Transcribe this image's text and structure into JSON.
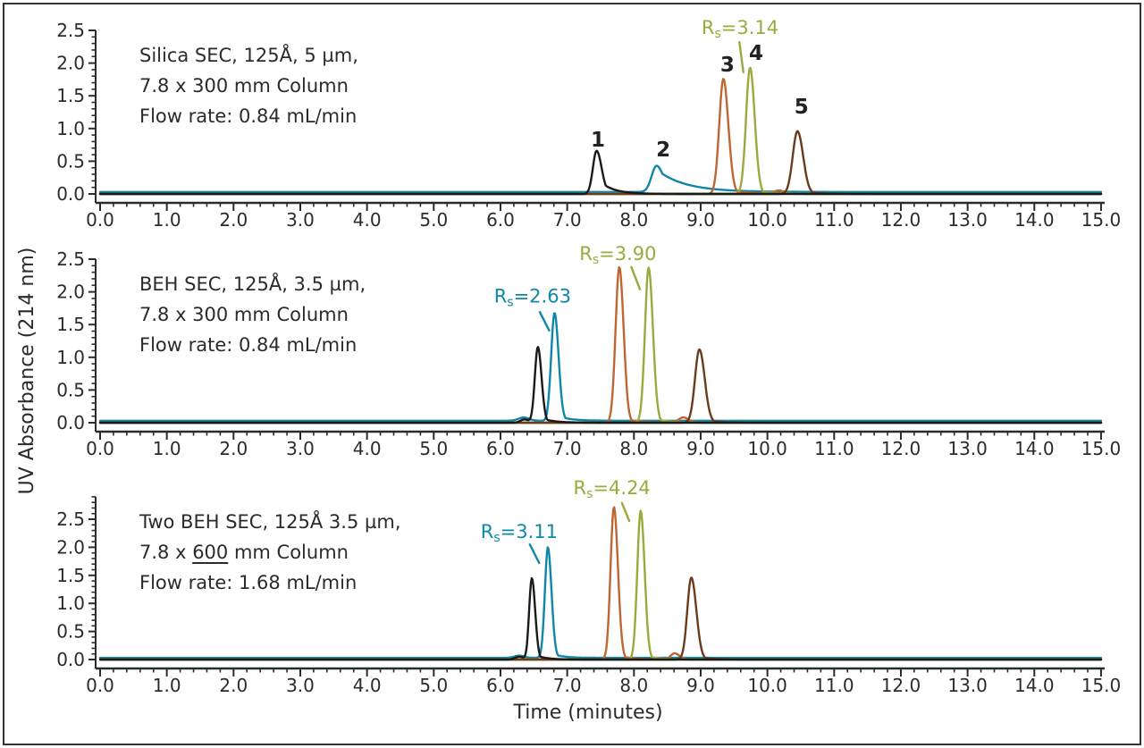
{
  "figure": {
    "xlabel": "Time (minutes)",
    "ylabel": "UV Absorbance (214 nm)",
    "background": "#ffffff",
    "border_color": "#333333",
    "text_color": "#2b2b2b",
    "axis_color": "#2b2b2b"
  },
  "axis": {
    "x_tick_labels": [
      "0.0",
      "1.0",
      "2.0",
      "3.0",
      "4.0",
      "5.0",
      "6.0",
      "7.0",
      "8.0",
      "9.0",
      "10.0",
      "11.0",
      "12.0",
      "13.0",
      "14.0",
      "15.0"
    ],
    "y_tick_labels": [
      "0.0",
      "0.5",
      "1.0",
      "1.5",
      "2.0",
      "2.5"
    ],
    "x_minor_step": 0.2,
    "y_minor_step": 0.1,
    "xlim": [
      0,
      15
    ]
  },
  "chart_data": [
    {
      "type": "line",
      "title_segments": [
        [
          {
            "t": "Silica SEC, 125Å, 5 µm,"
          }
        ],
        [
          {
            "t": "7.8 x 300 mm Column"
          }
        ],
        [
          {
            "t": "Flow rate: 0.84 mL/min"
          }
        ]
      ],
      "ylim": [
        0,
        2.5
      ],
      "series": [
        {
          "name": "teal",
          "color": "#0F87A8",
          "base": 0.03,
          "peaks": [
            {
              "c": 8.34,
              "h": 0.4,
              "wl": 0.075,
              "wr": 0.1,
              "ta": 0.85,
              "tl": 0.42
            }
          ]
        },
        {
          "name": "orange",
          "color": "#BF6632",
          "base": 0,
          "peaks": [
            {
              "c": 9.34,
              "h": 1.76,
              "wl": 0.062,
              "wr": 0.075,
              "ta": 0.05,
              "tl": 0.25
            },
            {
              "c": 10.17,
              "h": 0.05,
              "wl": 0.07,
              "wr": 0.08
            }
          ]
        },
        {
          "name": "olive",
          "color": "#9CA93C",
          "base": 0,
          "peaks": [
            {
              "c": 9.74,
              "h": 1.93,
              "wl": 0.06,
              "wr": 0.07,
              "ta": 0.04,
              "tl": 0.22
            }
          ]
        },
        {
          "name": "brown",
          "color": "#6A3B1D",
          "base": 0,
          "peaks": [
            {
              "c": 10.45,
              "h": 0.96,
              "wl": 0.07,
              "wr": 0.085,
              "ta": 0.05,
              "tl": 0.25
            }
          ]
        },
        {
          "name": "black",
          "color": "#1A1A1A",
          "base": 0,
          "peaks": [
            {
              "c": 7.44,
              "h": 0.66,
              "wl": 0.055,
              "wr": 0.075,
              "ta": 0.38,
              "tl": 0.2
            }
          ]
        }
      ],
      "peak_numbers": [
        {
          "label": "1",
          "t": 7.46,
          "v": 0.83
        },
        {
          "label": "2",
          "t": 8.44,
          "v": 0.68
        },
        {
          "label": "3",
          "t": 9.4,
          "v": 1.98
        },
        {
          "label": "4",
          "t": 9.83,
          "v": 2.16
        },
        {
          "label": "5",
          "t": 10.51,
          "v": 1.34
        }
      ],
      "rs_annotations": [
        {
          "pre": "R",
          "sub": "s",
          "rest": "=3.14",
          "color": "#9CA93C",
          "t": 9.59,
          "v": 2.54,
          "line": [
            9.58,
            2.32,
            9.64,
            1.86
          ]
        }
      ]
    },
    {
      "type": "line",
      "title_segments": [
        [
          {
            "t": "BEH SEC, 125Å, 3.5 µm,"
          }
        ],
        [
          {
            "t": "7.8 x 300 mm Column"
          }
        ],
        [
          {
            "t": "Flow rate: 0.84 mL/min"
          }
        ]
      ],
      "ylim": [
        0,
        2.5
      ],
      "series": [
        {
          "name": "teal",
          "color": "#0F87A8",
          "base": 0.03,
          "peaks": [
            {
              "c": 6.81,
              "h": 1.65,
              "wl": 0.05,
              "wr": 0.06,
              "ta": 0.06,
              "tl": 0.18
            },
            {
              "c": 6.35,
              "h": 0.05,
              "wl": 0.08,
              "wr": 0.08
            }
          ]
        },
        {
          "name": "orange",
          "color": "#BF6632",
          "base": 0,
          "peaks": [
            {
              "c": 7.78,
              "h": 2.38,
              "wl": 0.055,
              "wr": 0.065,
              "ta": 0.04,
              "tl": 0.2
            },
            {
              "c": 8.74,
              "h": 0.08,
              "wl": 0.07,
              "wr": 0.08
            }
          ]
        },
        {
          "name": "olive",
          "color": "#9CA93C",
          "base": 0,
          "peaks": [
            {
              "c": 8.22,
              "h": 2.37,
              "wl": 0.055,
              "wr": 0.065,
              "ta": 0.04,
              "tl": 0.2
            }
          ]
        },
        {
          "name": "brown",
          "color": "#6A3B1D",
          "base": 0,
          "peaks": [
            {
              "c": 8.98,
              "h": 1.12,
              "wl": 0.065,
              "wr": 0.08,
              "ta": 0.05,
              "tl": 0.22
            }
          ]
        },
        {
          "name": "black",
          "color": "#1A1A1A",
          "base": 0,
          "peaks": [
            {
              "c": 6.56,
              "h": 1.16,
              "wl": 0.045,
              "wr": 0.055,
              "ta": 0.08,
              "tl": 0.18
            },
            {
              "c": 6.36,
              "h": 0.05,
              "wl": 0.06,
              "wr": 0.06
            }
          ]
        }
      ],
      "peak_numbers": [],
      "rs_annotations": [
        {
          "pre": "R",
          "sub": "s",
          "rest": "=2.63",
          "color": "#0F87A8",
          "t": 6.48,
          "v": 1.93,
          "line": [
            6.59,
            1.69,
            6.73,
            1.41
          ]
        },
        {
          "pre": "R",
          "sub": "s",
          "rest": "=3.90",
          "color": "#9CA93C",
          "t": 7.76,
          "v": 2.58,
          "line": [
            7.96,
            2.38,
            8.09,
            2.04
          ]
        }
      ]
    },
    {
      "type": "line",
      "title_segments": [
        [
          {
            "t": "Two BEH SEC, 125Å 3.5 µm,"
          }
        ],
        [
          {
            "t": "7.8 x "
          },
          {
            "t": "600",
            "u": true
          },
          {
            "t": " mm Column"
          }
        ],
        [
          {
            "t": "Flow rate: 1.68 mL/min"
          }
        ]
      ],
      "ylim": [
        0,
        2.9
      ],
      "series": [
        {
          "name": "teal",
          "color": "#0F87A8",
          "base": 0.03,
          "peaks": [
            {
              "c": 6.71,
              "h": 1.97,
              "wl": 0.045,
              "wr": 0.055,
              "ta": 0.06,
              "tl": 0.15
            },
            {
              "c": 6.28,
              "h": 0.04,
              "wl": 0.07,
              "wr": 0.07
            }
          ]
        },
        {
          "name": "orange",
          "color": "#BF6632",
          "base": 0,
          "peaks": [
            {
              "c": 7.7,
              "h": 2.72,
              "wl": 0.05,
              "wr": 0.06,
              "ta": 0.04,
              "tl": 0.18
            },
            {
              "c": 8.61,
              "h": 0.11,
              "wl": 0.06,
              "wr": 0.07
            }
          ]
        },
        {
          "name": "olive",
          "color": "#9CA93C",
          "base": 0,
          "peaks": [
            {
              "c": 8.1,
              "h": 2.65,
              "wl": 0.05,
              "wr": 0.06,
              "ta": 0.04,
              "tl": 0.18
            }
          ]
        },
        {
          "name": "brown",
          "color": "#6A3B1D",
          "base": 0,
          "peaks": [
            {
              "c": 8.86,
              "h": 1.46,
              "wl": 0.06,
              "wr": 0.075,
              "ta": 0.05,
              "tl": 0.2
            }
          ]
        },
        {
          "name": "black",
          "color": "#1A1A1A",
          "base": 0,
          "peaks": [
            {
              "c": 6.47,
              "h": 1.45,
              "wl": 0.04,
              "wr": 0.05,
              "ta": 0.08,
              "tl": 0.15
            },
            {
              "c": 6.28,
              "h": 0.05,
              "wl": 0.06,
              "wr": 0.06
            }
          ]
        }
      ],
      "peak_numbers": [],
      "rs_annotations": [
        {
          "pre": "R",
          "sub": "s",
          "rest": "=3.11",
          "color": "#0F87A8",
          "t": 6.28,
          "v": 2.28,
          "line": [
            6.44,
            2.05,
            6.58,
            1.72
          ]
        },
        {
          "pre": "R",
          "sub": "s",
          "rest": "=4.24",
          "color": "#9CA93C",
          "t": 7.67,
          "v": 3.06,
          "line": [
            7.82,
            2.79,
            7.93,
            2.47
          ]
        }
      ]
    }
  ]
}
